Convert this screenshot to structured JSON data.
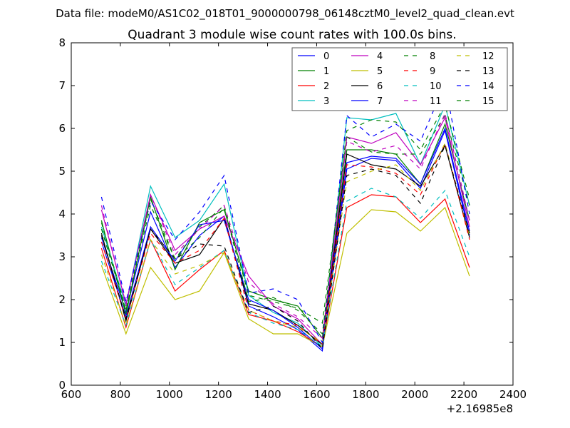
{
  "chart_data": {
    "type": "line",
    "suptitle": "Data file: modeM0/AS1C02_018T01_9000000798_06148cztM0_level2_quad_clean.evt",
    "title": "Quadrant 3 module wise count rates with 100.0s bins.",
    "xlabel": "",
    "ylabel": "",
    "x_offset_label": "+2.16985e8",
    "xlim": [
      600,
      2400
    ],
    "ylim": [
      0,
      8
    ],
    "xticks": [
      600,
      800,
      1000,
      1200,
      1400,
      1600,
      1800,
      2000,
      2200,
      2400
    ],
    "yticks": [
      0,
      1,
      2,
      3,
      4,
      5,
      6,
      7,
      8
    ],
    "legend_position": "top-right",
    "grid": false,
    "x": [
      723,
      823,
      923,
      1023,
      1123,
      1223,
      1323,
      1423,
      1523,
      1623,
      1723,
      1823,
      1923,
      2023,
      2123,
      2223
    ],
    "series": [
      {
        "name": "0",
        "color": "#0000ff",
        "dash": "solid",
        "values": [
          3.45,
          1.7,
          4.05,
          2.75,
          3.5,
          3.95,
          1.85,
          1.6,
          1.3,
          0.8,
          5.05,
          5.3,
          5.25,
          4.6,
          5.95,
          3.5
        ]
      },
      {
        "name": "1",
        "color": "#008000",
        "dash": "solid",
        "values": [
          3.85,
          1.65,
          4.4,
          2.7,
          3.8,
          4.1,
          2.2,
          2.0,
          1.85,
          1.1,
          5.5,
          5.5,
          5.4,
          4.7,
          6.1,
          3.85
        ]
      },
      {
        "name": "2",
        "color": "#ff0000",
        "dash": "solid",
        "values": [
          3.2,
          1.35,
          3.4,
          2.2,
          2.7,
          3.15,
          1.65,
          1.5,
          1.25,
          0.9,
          4.15,
          4.45,
          4.4,
          3.8,
          4.35,
          2.75
        ]
      },
      {
        "name": "3",
        "color": "#00bfbf",
        "dash": "solid",
        "values": [
          3.7,
          1.85,
          4.65,
          3.45,
          3.85,
          4.7,
          2.1,
          1.7,
          1.45,
          0.9,
          6.25,
          6.2,
          6.35,
          5.15,
          6.55,
          4.2
        ]
      },
      {
        "name": "4",
        "color": "#bf00bf",
        "dash": "solid",
        "values": [
          4.1,
          1.9,
          4.45,
          3.15,
          3.65,
          3.95,
          2.55,
          1.85,
          1.55,
          0.95,
          5.8,
          5.65,
          5.9,
          5.15,
          6.25,
          3.7
        ]
      },
      {
        "name": "5",
        "color": "#bfbf00",
        "dash": "solid",
        "values": [
          2.8,
          1.2,
          2.75,
          2.0,
          2.2,
          3.1,
          1.55,
          1.2,
          1.2,
          0.9,
          3.55,
          4.1,
          4.05,
          3.6,
          4.15,
          2.55
        ]
      },
      {
        "name": "6",
        "color": "#000000",
        "dash": "solid",
        "values": [
          3.55,
          1.5,
          3.65,
          2.85,
          3.05,
          3.9,
          1.9,
          1.75,
          1.4,
          0.95,
          5.4,
          5.15,
          5.05,
          4.65,
          5.6,
          3.45
        ]
      },
      {
        "name": "7",
        "color": "#0000ff",
        "dash": "solid",
        "values": [
          3.35,
          1.6,
          3.7,
          2.9,
          3.75,
          3.85,
          2.0,
          1.75,
          1.35,
          0.85,
          5.2,
          5.35,
          5.3,
          4.7,
          6.0,
          3.6
        ]
      },
      {
        "name": "8",
        "color": "#008000",
        "dash": "dashed",
        "values": [
          3.65,
          1.75,
          4.2,
          2.95,
          3.7,
          4.2,
          2.1,
          1.95,
          1.8,
          1.45,
          5.8,
          5.45,
          5.4,
          5.4,
          6.3,
          4.2
        ]
      },
      {
        "name": "9",
        "color": "#ff0000",
        "dash": "dashed",
        "values": [
          3.35,
          1.55,
          3.55,
          2.85,
          3.15,
          3.9,
          1.75,
          1.5,
          1.4,
          0.95,
          5.15,
          5.1,
          4.95,
          4.45,
          5.65,
          3.4
        ]
      },
      {
        "name": "10",
        "color": "#00bfbf",
        "dash": "dashed",
        "values": [
          2.9,
          1.4,
          3.4,
          2.35,
          2.75,
          3.15,
          1.7,
          1.45,
          1.3,
          0.9,
          4.3,
          4.6,
          4.4,
          3.9,
          4.55,
          3.0
        ]
      },
      {
        "name": "11",
        "color": "#bf00bf",
        "dash": "dashed",
        "values": [
          4.2,
          1.85,
          4.45,
          3.05,
          3.65,
          4.2,
          2.4,
          1.9,
          1.6,
          1.1,
          5.7,
          5.45,
          5.6,
          5.05,
          6.35,
          3.85
        ]
      },
      {
        "name": "12",
        "color": "#bfbf00",
        "dash": "dashed",
        "values": [
          3.05,
          1.4,
          3.4,
          2.6,
          2.8,
          3.1,
          1.75,
          1.5,
          1.35,
          1.0,
          4.75,
          5.0,
          5.15,
          4.55,
          5.65,
          3.5
        ]
      },
      {
        "name": "13",
        "color": "#000000",
        "dash": "dashed",
        "values": [
          3.5,
          1.55,
          3.65,
          2.95,
          3.3,
          3.25,
          1.7,
          1.85,
          1.5,
          0.85,
          4.9,
          5.05,
          4.9,
          4.25,
          5.6,
          3.55
        ]
      },
      {
        "name": "14",
        "color": "#0000ff",
        "dash": "dashed",
        "values": [
          4.4,
          1.95,
          4.3,
          3.4,
          4.05,
          4.9,
          2.15,
          2.25,
          2.0,
          1.0,
          6.3,
          5.8,
          6.1,
          5.7,
          7.05,
          4.0
        ]
      },
      {
        "name": "15",
        "color": "#008000",
        "dash": "dashed",
        "values": [
          3.8,
          1.75,
          4.35,
          2.95,
          3.45,
          4.15,
          1.95,
          2.05,
          1.75,
          1.2,
          5.95,
          6.2,
          6.15,
          5.5,
          6.55,
          4.35
        ]
      }
    ]
  }
}
